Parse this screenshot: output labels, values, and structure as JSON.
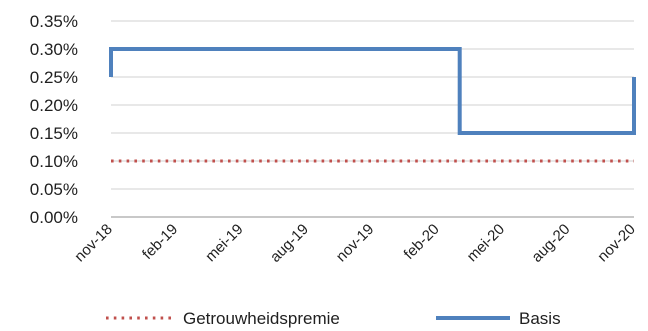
{
  "chart_data": {
    "type": "line",
    "title": "",
    "xlabel": "",
    "ylabel": "",
    "x": [
      "nov-18",
      "feb-19",
      "mei-19",
      "aug-19",
      "nov-19",
      "feb-20",
      "mei-20",
      "aug-20",
      "nov-20"
    ],
    "y_ticks": [
      "0.00%",
      "0.05%",
      "0.10%",
      "0.15%",
      "0.20%",
      "0.25%",
      "0.30%",
      "0.35%"
    ],
    "ylim": [
      0,
      0.35
    ],
    "grid": true,
    "legend_position": "bottom",
    "series": [
      {
        "name": "Getrouwheidspremie",
        "style": "dotted",
        "color": "#c0504d",
        "points": [
          {
            "x": "nov-18",
            "y": 0.1
          },
          {
            "x": "nov-20",
            "y": 0.1
          }
        ]
      },
      {
        "name": "Basis",
        "style": "solid",
        "color": "#4f81bd",
        "points": [
          {
            "x": "nov-18",
            "y": 0.25
          },
          {
            "x": "nov-18",
            "y": 0.3
          },
          {
            "x": "mar-20",
            "y": 0.3
          },
          {
            "x": "mar-20",
            "y": 0.15
          },
          {
            "x": "nov-20",
            "y": 0.15
          },
          {
            "x": "nov-20",
            "y": 0.25
          }
        ]
      }
    ]
  }
}
